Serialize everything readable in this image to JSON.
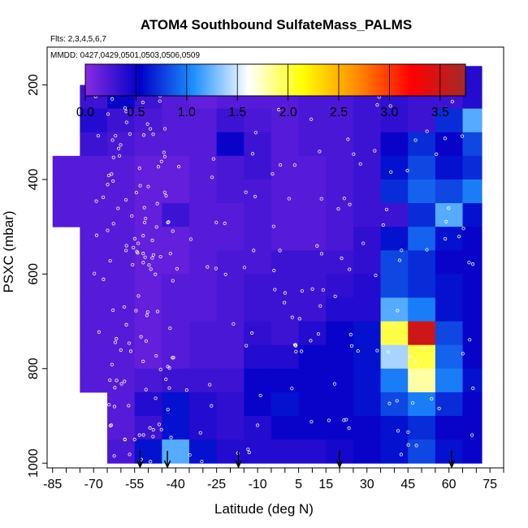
{
  "chart_data": {
    "type": "heatmap",
    "title": "ATOM4 Southbound SulfateMass_PALMS",
    "note_flights": "Flts: 2,3,4,5,6,7",
    "note_dates": "MMDD: 0427,0429,0501,0503,0506,0509",
    "xlabel": "Latitude (deg N)",
    "ylabel": "PSXC (mbar)",
    "xlim": [
      -87,
      80
    ],
    "ylim": [
      1010,
      120
    ],
    "x_ticks": [
      -85,
      -70,
      -55,
      -40,
      -25,
      -10,
      5,
      15,
      30,
      45,
      60,
      75
    ],
    "x_tick_labels": [
      "-85",
      "-70",
      "-55",
      "-40",
      "-25",
      "-10",
      "5",
      "15",
      "30",
      "45",
      "60",
      "75"
    ],
    "y_ticks": [
      200,
      400,
      600,
      800,
      1000
    ],
    "y_tick_labels": [
      "200",
      "400",
      "600",
      "800",
      "1000"
    ],
    "colorbar": {
      "min": 0,
      "max": 3.75,
      "ticks": [
        0.0,
        0.5,
        1.0,
        1.5,
        2.0,
        2.5,
        3.0,
        3.5
      ],
      "tick_labels": [
        "0.0",
        "0.5",
        "1.0",
        "1.5",
        "2.0",
        "2.5",
        "3.0",
        "3.5"
      ],
      "colors": [
        "#8a2be2",
        "#0000c8",
        "#1e90ff",
        "#ffffff",
        "#ffff00",
        "#ff8c00",
        "#ff0000",
        "#a52a2a"
      ]
    },
    "grid": {
      "lat_edges": [
        -85,
        -75,
        -65,
        -55,
        -45,
        -35,
        -25,
        -15,
        -5,
        5,
        15,
        25,
        35,
        45,
        55,
        65,
        72
      ],
      "p_edges": [
        160,
        200,
        250,
        300,
        350,
        400,
        450,
        500,
        550,
        600,
        650,
        700,
        750,
        800,
        850,
        900,
        950,
        1000
      ],
      "values": [
        [
          null,
          null,
          null,
          null,
          null,
          0.15,
          0.2,
          0.2,
          0.2,
          0.25,
          0.25,
          0.3,
          0.35,
          0.3,
          0.3,
          0.4,
          null
        ],
        [
          null,
          0.3,
          0.5,
          0.3,
          0.2,
          0.15,
          0.2,
          0.2,
          0.2,
          0.25,
          0.25,
          0.3,
          0.35,
          0.3,
          0.3,
          0.4,
          null
        ],
        [
          null,
          0.4,
          0.3,
          0.25,
          0.2,
          0.2,
          0.3,
          0.25,
          0.2,
          0.25,
          0.25,
          0.3,
          0.35,
          0.3,
          0.7,
          1.2,
          null
        ],
        [
          null,
          0.3,
          0.25,
          0.2,
          0.2,
          0.2,
          0.5,
          0.3,
          0.2,
          0.25,
          0.25,
          0.3,
          0.5,
          0.7,
          0.5,
          0.8,
          null
        ],
        [
          0.2,
          0.2,
          0.2,
          0.15,
          0.15,
          0.2,
          0.25,
          0.3,
          0.2,
          0.2,
          0.25,
          0.3,
          0.6,
          0.8,
          0.6,
          0.7,
          null
        ],
        [
          0.2,
          0.2,
          0.2,
          0.15,
          0.15,
          0.2,
          0.25,
          0.25,
          0.2,
          0.2,
          0.25,
          0.3,
          0.7,
          0.9,
          0.8,
          1.0,
          null
        ],
        [
          0.2,
          0.2,
          0.2,
          0.15,
          0.3,
          0.2,
          0.2,
          0.25,
          0.2,
          0.2,
          0.25,
          0.3,
          0.3,
          0.7,
          1.2,
          0.6,
          null
        ],
        [
          null,
          0.2,
          0.2,
          0.15,
          0.15,
          0.2,
          0.2,
          0.25,
          0.2,
          0.2,
          0.25,
          0.35,
          0.6,
          0.9,
          0.6,
          0.5,
          null
        ],
        [
          null,
          0.2,
          0.2,
          0.15,
          0.15,
          0.2,
          0.25,
          0.25,
          0.3,
          0.3,
          0.3,
          0.35,
          0.8,
          0.7,
          0.5,
          0.5,
          null
        ],
        [
          null,
          0.2,
          0.2,
          0.15,
          0.2,
          0.2,
          0.25,
          0.3,
          0.3,
          0.3,
          0.35,
          0.4,
          0.8,
          0.7,
          0.6,
          0.5,
          null
        ],
        [
          null,
          0.2,
          0.2,
          0.15,
          0.2,
          0.2,
          0.25,
          0.3,
          0.3,
          0.3,
          0.4,
          0.4,
          1.2,
          1.0,
          0.6,
          0.5,
          null
        ],
        [
          null,
          0.2,
          0.2,
          0.15,
          0.2,
          0.25,
          0.25,
          0.35,
          0.3,
          0.4,
          0.5,
          0.6,
          2.0,
          3.5,
          0.8,
          0.5,
          null
        ],
        [
          null,
          0.2,
          0.2,
          0.15,
          0.2,
          0.25,
          0.25,
          0.4,
          0.4,
          0.5,
          0.5,
          0.6,
          1.4,
          2.0,
          0.9,
          0.5,
          null
        ],
        [
          null,
          0.2,
          0.2,
          0.25,
          0.3,
          0.3,
          0.3,
          0.5,
          0.5,
          0.5,
          0.5,
          0.6,
          1.0,
          1.8,
          1.0,
          0.6,
          null
        ],
        [
          null,
          null,
          0.2,
          0.4,
          0.6,
          0.4,
          0.35,
          0.5,
          0.6,
          0.5,
          0.5,
          0.6,
          0.8,
          1.0,
          0.7,
          0.5,
          null
        ],
        [
          null,
          null,
          0.2,
          0.3,
          0.6,
          0.4,
          0.35,
          0.4,
          0.5,
          0.5,
          0.5,
          0.5,
          0.6,
          0.7,
          0.5,
          0.5,
          null
        ],
        [
          null,
          null,
          0.25,
          0.6,
          1.2,
          0.6,
          0.4,
          0.4,
          0.4,
          0.4,
          0.45,
          0.5,
          0.6,
          0.8,
          0.6,
          0.5,
          null
        ]
      ]
    },
    "arrow_latitudes": [
      -53,
      -43,
      -17,
      20,
      61
    ]
  }
}
